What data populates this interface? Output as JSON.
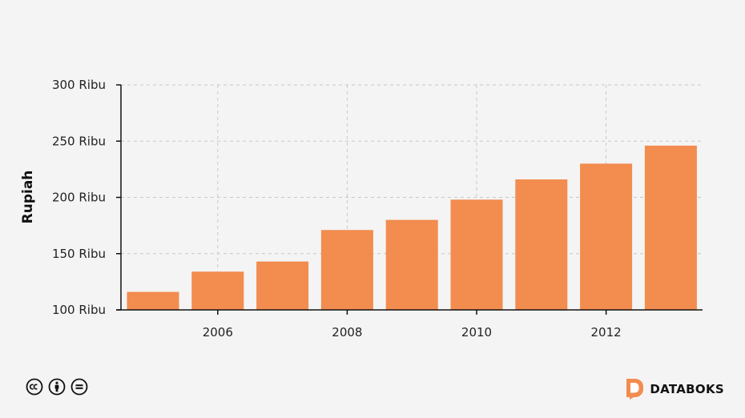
{
  "chart_data": {
    "type": "bar",
    "categories": [
      "2005",
      "2006",
      "2007",
      "2008",
      "2009",
      "2010",
      "2011",
      "2012",
      "2013"
    ],
    "values": [
      116000,
      134000,
      143000,
      171000,
      180000,
      198000,
      216000,
      230000,
      246000
    ],
    "x_tick_labels": [
      "2006",
      "2008",
      "2010",
      "2012"
    ],
    "y_ticks": [
      100000,
      150000,
      200000,
      250000,
      300000
    ],
    "y_tick_labels": [
      "100 Ribu",
      "150 Ribu",
      "200 Ribu",
      "250 Ribu",
      "300 Ribu"
    ],
    "ylim": [
      100000,
      300000
    ],
    "title": "",
    "xlabel": "",
    "ylabel": "Rupiah",
    "grid": true,
    "bar_color": "#f28c4f"
  },
  "footer": {
    "license_icons": [
      "creative-commons-icon",
      "attribution-icon",
      "no-derivatives-icon"
    ],
    "brand_name": "DATABOKS",
    "brand_color": "#f28c4f"
  }
}
